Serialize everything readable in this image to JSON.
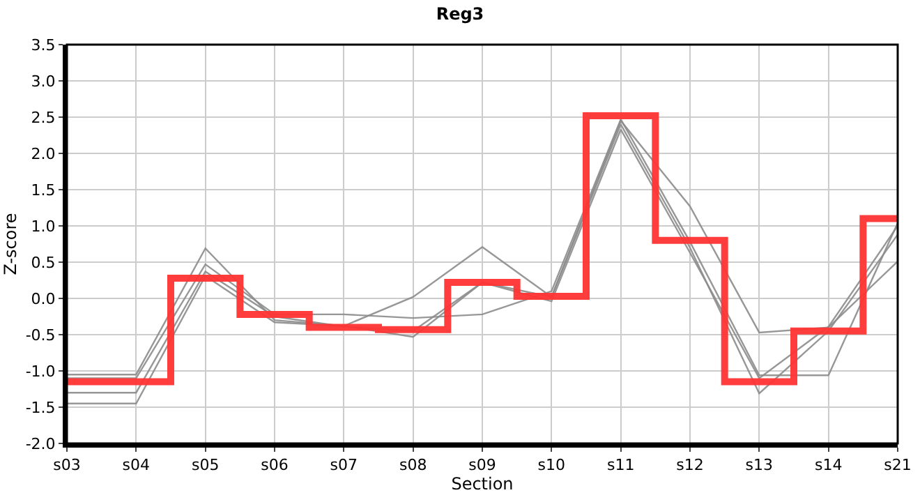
{
  "chart_data": {
    "type": "line",
    "title": "Reg3",
    "xlabel": "Section",
    "ylabel": "Z-score",
    "categories": [
      "s03",
      "s04",
      "s05",
      "s06",
      "s07",
      "s08",
      "s09",
      "s10",
      "s11",
      "s12",
      "s13",
      "s14",
      "s21"
    ],
    "ylim": [
      -2.0,
      3.5
    ],
    "yticks": [
      {
        "value": -2,
        "label": "-2.0"
      },
      -1.5,
      {
        "value": -1,
        "label": "-1.0"
      },
      -0.5,
      {
        "value": 0,
        "label": "0.0"
      },
      0.5,
      {
        "value": 1,
        "label": "1.0"
      },
      1.5,
      {
        "value": 2,
        "label": "2.0"
      },
      2.5,
      {
        "value": 3,
        "label": "3.0"
      },
      3.5
    ],
    "grid": true,
    "marker": "none",
    "line_style": "solid",
    "series": [
      {
        "color": "#8c8c8c",
        "values": [
          -1.05,
          -1.05,
          0.69,
          -0.3,
          -0.38,
          0.02,
          0.71,
          0.02,
          2.45,
          1.27,
          -0.47,
          -0.4,
          0.51
        ]
      },
      {
        "color": "#8c8c8c",
        "values": [
          -1.1,
          -1.1,
          0.47,
          -0.22,
          -0.22,
          -0.27,
          -0.22,
          0.1,
          2.47,
          0.78,
          -1.06,
          -1.06,
          1.04
        ]
      },
      {
        "color": "#8c8c8c",
        "values": [
          -1.3,
          -1.3,
          0.37,
          -0.25,
          -0.39,
          -0.45,
          0.22,
          0.02,
          2.4,
          0.7,
          -1.31,
          -0.45,
          0.88
        ]
      },
      {
        "color": "#8c8c8c",
        "values": [
          -1.45,
          -1.45,
          0.31,
          -0.33,
          -0.38,
          -0.53,
          0.22,
          -0.04,
          2.33,
          0.63,
          -1.1,
          -0.39,
          1.0
        ]
      },
      {
        "type": "step",
        "color": "#ff3333",
        "values": [
          -1.15,
          -1.15,
          0.28,
          -0.22,
          -0.4,
          -0.43,
          0.22,
          0.03,
          2.52,
          0.8,
          -1.15,
          -0.45,
          1.1
        ]
      }
    ]
  }
}
